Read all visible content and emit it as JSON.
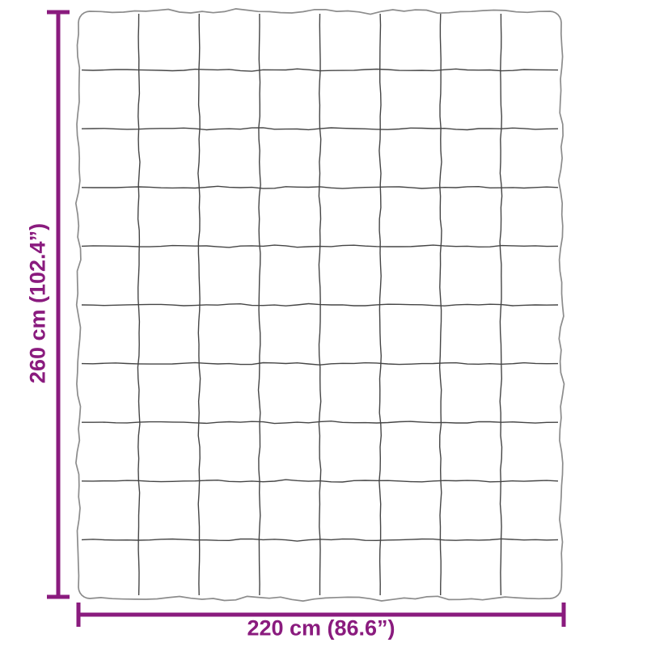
{
  "diagram": {
    "height_label": "260 cm (102.4”)",
    "width_label": "220 cm (86.6”)",
    "blanket_grid": {
      "rows": 10,
      "columns": 8
    },
    "colors": {
      "dimension_accent": "#8A1B7E",
      "blanket_outline": "#8C8C8C",
      "grid_line": "#454545",
      "background": "#FFFFFF"
    }
  }
}
